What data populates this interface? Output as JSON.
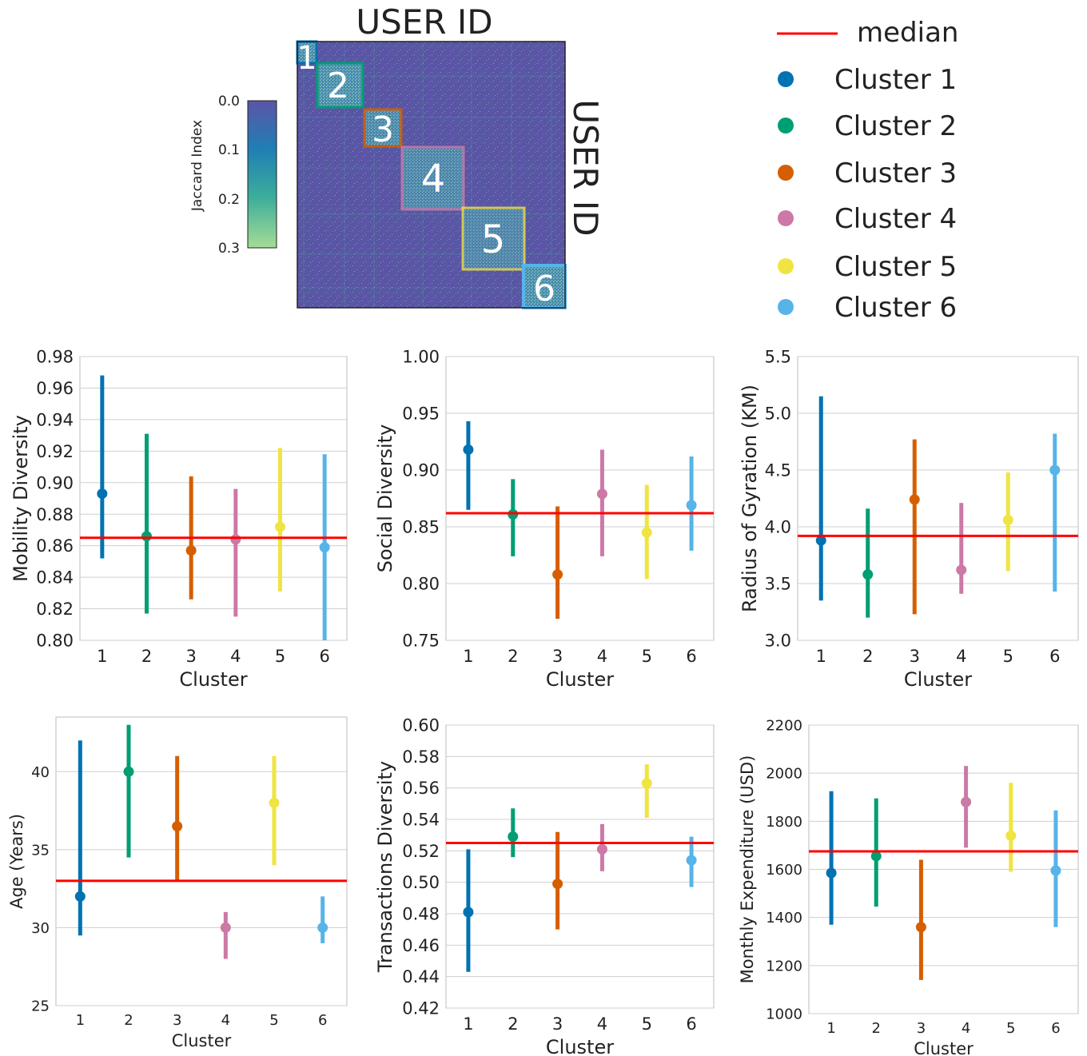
{
  "heatmap": {
    "title_top": "USER ID",
    "title_right": "USER ID",
    "colorbar_label": "Jaccard Index",
    "colorbar_ticks": [
      "0.0",
      "0.1",
      "0.2",
      "0.3"
    ],
    "cluster_labels": [
      "1",
      "2",
      "3",
      "4",
      "5",
      "6"
    ]
  },
  "legend": {
    "median_label": "median",
    "median_color": "#ff0000",
    "entries": [
      {
        "label": "Cluster 1",
        "color": "#0072b2"
      },
      {
        "label": "Cluster 2",
        "color": "#009e73"
      },
      {
        "label": "Cluster 3",
        "color": "#d55e00"
      },
      {
        "label": "Cluster 4",
        "color": "#cc79a7"
      },
      {
        "label": "Cluster 5",
        "color": "#f0e442"
      },
      {
        "label": "Cluster 6",
        "color": "#56b4e9"
      }
    ]
  },
  "chart_data": [
    {
      "type": "scatter",
      "ylabel": "Mobility Diversity",
      "xlabel": "Cluster",
      "categories": [
        "1",
        "2",
        "3",
        "4",
        "5",
        "6"
      ],
      "values": [
        0.893,
        0.866,
        0.857,
        0.864,
        0.872,
        0.859
      ],
      "lower": [
        0.852,
        0.817,
        0.826,
        0.815,
        0.831,
        0.8
      ],
      "upper": [
        0.968,
        0.931,
        0.904,
        0.896,
        0.922,
        0.918
      ],
      "median": 0.865,
      "ylim": [
        0.8,
        0.98
      ],
      "yticks": [
        "0.80",
        "0.82",
        "0.84",
        "0.86",
        "0.88",
        "0.90",
        "0.92",
        "0.94",
        "0.96",
        "0.98"
      ]
    },
    {
      "type": "scatter",
      "ylabel": "Social Diversity",
      "xlabel": "Cluster",
      "categories": [
        "1",
        "2",
        "3",
        "4",
        "5",
        "6"
      ],
      "values": [
        0.918,
        0.861,
        0.808,
        0.879,
        0.845,
        0.869
      ],
      "lower": [
        0.865,
        0.824,
        0.769,
        0.824,
        0.804,
        0.829
      ],
      "upper": [
        0.943,
        0.892,
        0.868,
        0.918,
        0.887,
        0.912
      ],
      "median": 0.862,
      "ylim": [
        0.75,
        1.0
      ],
      "yticks": [
        "0.75",
        "0.80",
        "0.85",
        "0.90",
        "0.95",
        "1.00"
      ]
    },
    {
      "type": "scatter",
      "ylabel": "Radius of Gyration (KM)",
      "xlabel": "Cluster",
      "categories": [
        "1",
        "2",
        "3",
        "4",
        "5",
        "6"
      ],
      "values": [
        3.88,
        3.58,
        4.24,
        3.62,
        4.06,
        4.5
      ],
      "lower": [
        3.35,
        3.2,
        3.23,
        3.41,
        3.61,
        3.43
      ],
      "upper": [
        5.15,
        4.16,
        4.77,
        4.21,
        4.48,
        4.82
      ],
      "median": 3.92,
      "ylim": [
        3.0,
        5.5
      ],
      "yticks": [
        "3.0",
        "3.5",
        "4.0",
        "4.5",
        "5.0",
        "5.5"
      ]
    },
    {
      "type": "scatter",
      "ylabel": "Age (Years)",
      "xlabel": "Cluster",
      "categories": [
        "1",
        "2",
        "3",
        "4",
        "5",
        "6"
      ],
      "values": [
        32,
        40,
        36.5,
        30,
        38,
        30
      ],
      "lower": [
        29.5,
        34.5,
        33,
        28,
        34,
        29
      ],
      "upper": [
        42,
        43,
        41,
        31,
        41,
        32
      ],
      "median": 33,
      "ylim": [
        25,
        43.5
      ],
      "yticks": [
        "25",
        "30",
        "35",
        "40"
      ]
    },
    {
      "type": "scatter",
      "ylabel": "Transactions Diversity",
      "xlabel": "Cluster",
      "categories": [
        "1",
        "2",
        "3",
        "4",
        "5",
        "6"
      ],
      "values": [
        0.481,
        0.529,
        0.499,
        0.521,
        0.563,
        0.514
      ],
      "lower": [
        0.443,
        0.516,
        0.47,
        0.507,
        0.541,
        0.497
      ],
      "upper": [
        0.521,
        0.547,
        0.532,
        0.537,
        0.575,
        0.529
      ],
      "median": 0.525,
      "ylim": [
        0.42,
        0.6
      ],
      "yticks": [
        "0.42",
        "0.44",
        "0.46",
        "0.48",
        "0.50",
        "0.52",
        "0.54",
        "0.56",
        "0.58",
        "0.60"
      ]
    },
    {
      "type": "scatter",
      "ylabel": "Monthly Expenditure (USD)",
      "xlabel": "Cluster",
      "categories": [
        "1",
        "2",
        "3",
        "4",
        "5",
        "6"
      ],
      "values": [
        1585,
        1655,
        1360,
        1880,
        1740,
        1595
      ],
      "lower": [
        1370,
        1445,
        1140,
        1690,
        1590,
        1360
      ],
      "upper": [
        1925,
        1895,
        1640,
        2030,
        1960,
        1845
      ],
      "median": 1675,
      "ylim": [
        1000,
        2200
      ],
      "yticks": [
        "1000",
        "1200",
        "1400",
        "1600",
        "1800",
        "2000",
        "2200"
      ]
    }
  ]
}
